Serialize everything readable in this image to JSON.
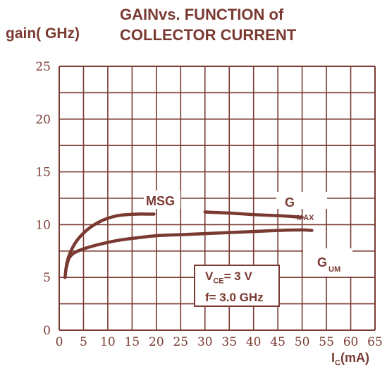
{
  "chart_data": {
    "type": "line",
    "title": [
      "GAINvs.  FUNCTION of",
      "COLLECTOR CURRENT"
    ],
    "ylabel": "gain( GHz)",
    "xlabel": {
      "main": "I",
      "sub": "C",
      "unit": "(mA)"
    },
    "xlim": [
      0,
      65
    ],
    "ylim": [
      0,
      25
    ],
    "x_ticks": [
      0,
      5,
      10,
      15,
      20,
      25,
      30,
      35,
      40,
      45,
      50,
      55,
      60,
      65
    ],
    "y_ticks": [
      0,
      5,
      10,
      15,
      20,
      25
    ],
    "grid": true,
    "series": [
      {
        "name": "MSG",
        "x": [
          1.2,
          1.6,
          2.5,
          4,
          6,
          8,
          10,
          12,
          14,
          16,
          18,
          19.5
        ],
        "y": [
          5.0,
          6.4,
          7.6,
          8.7,
          9.6,
          10.2,
          10.6,
          10.85,
          10.95,
          11.0,
          11.0,
          11.0
        ]
      },
      {
        "name": "G_MAX",
        "x": [
          30,
          35,
          40,
          45,
          50
        ],
        "y": [
          11.2,
          11.1,
          10.95,
          10.85,
          10.7
        ]
      },
      {
        "name": "G_UM",
        "x": [
          1.5,
          2,
          3,
          5,
          8,
          12,
          16,
          20,
          25,
          30,
          35,
          40,
          45,
          50,
          52
        ],
        "y": [
          6.0,
          6.8,
          7.3,
          7.7,
          8.1,
          8.5,
          8.75,
          8.95,
          9.05,
          9.15,
          9.25,
          9.35,
          9.45,
          9.5,
          9.45
        ]
      }
    ],
    "annotations": {
      "msg": "MSG",
      "gmax": {
        "main": "G",
        "sub": "MAX"
      },
      "gum": {
        "main": "G",
        "sub": "UM"
      },
      "conditions": {
        "vce_main": "V",
        "vce_sub": "CE",
        "vce_value": "= 3  V",
        "freq": "f= 3.0 GHz"
      }
    },
    "color": "#7a3a32"
  }
}
